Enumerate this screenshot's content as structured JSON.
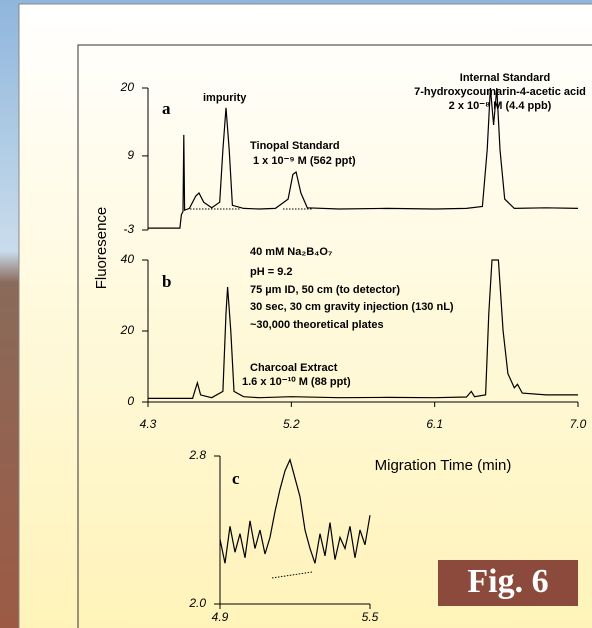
{
  "y_label": "Fluoresence",
  "figure_label": "Fig. 6",
  "chart_data": [
    {
      "type": "line",
      "panel": "a",
      "color": "#000000",
      "xlim": [
        4.3,
        7.0
      ],
      "ylim": [
        -3,
        20
      ],
      "yticks": [
        -3,
        9,
        20
      ],
      "x": [
        4.3,
        4.5,
        4.51,
        4.52,
        4.525,
        4.53,
        4.56,
        4.6,
        4.62,
        4.65,
        4.7,
        4.75,
        4.77,
        4.79,
        4.81,
        4.83,
        4.9,
        5.0,
        5.1,
        5.18,
        5.21,
        5.23,
        5.26,
        5.3,
        5.5,
        5.8,
        6.1,
        6.3,
        6.4,
        6.43,
        6.45,
        6.47,
        6.49,
        6.51,
        6.54,
        6.6,
        6.8,
        7.0
      ],
      "values": [
        -2.7,
        -2.7,
        -0.5,
        0,
        12.4,
        0.2,
        0.5,
        2.5,
        3,
        1.5,
        0.6,
        1.5,
        10,
        16.8,
        10,
        1,
        0.5,
        0.4,
        0.5,
        2,
        6.0,
        6.4,
        3,
        0.6,
        0.4,
        0.5,
        0.4,
        0.5,
        0.8,
        10,
        20,
        14,
        20,
        10,
        2,
        0.5,
        0.6,
        0.5
      ],
      "annotations": [
        "impurity",
        "Tinopal Standard",
        "1 x 10⁻⁹ M  (562 ppt)",
        "Internal Standard",
        "7-hydroxycoumarin-4-acetic acid",
        "2 x 10⁻⁸ M  (4.4 ppb)"
      ]
    },
    {
      "type": "line",
      "panel": "b",
      "color": "#000000",
      "xlim": [
        4.3,
        7.0
      ],
      "ylim": [
        0,
        40
      ],
      "yticks": [
        0,
        20,
        40
      ],
      "xticks": [
        4.3,
        5.2,
        6.1,
        {
          "value": 7,
          "label": "7.0"
        }
      ],
      "x_label": "Migration Time (min)",
      "x": [
        4.3,
        4.58,
        4.6,
        4.61,
        4.63,
        4.7,
        4.77,
        4.79,
        4.8,
        4.82,
        4.84,
        4.9,
        5.0,
        5.2,
        5.5,
        5.8,
        6.1,
        6.3,
        6.33,
        6.35,
        6.42,
        6.44,
        6.46,
        6.5,
        6.53,
        6.56,
        6.6,
        6.62,
        6.65,
        6.8,
        7.0
      ],
      "values": [
        1,
        1,
        4,
        5.4,
        2,
        1.2,
        3,
        25,
        32.4,
        20,
        3,
        1.5,
        1.2,
        1.5,
        1.2,
        1.3,
        1.2,
        1.4,
        3,
        1.5,
        2,
        25,
        40,
        40,
        20,
        8,
        4,
        5,
        2.5,
        2,
        2
      ],
      "annotations": [
        "40 mM Na₂B₄O₇",
        "pH = 9.2",
        "75 µm ID, 50 cm (to detector)",
        "30 sec, 30 cm gravity injection (130 nL)",
        "~30,000 theoretical plates",
        "Charcoal Extract",
        "1.6 x 10⁻¹⁰ M  (88 ppt)"
      ]
    },
    {
      "type": "line",
      "panel": "c",
      "color": "#000000",
      "xlim": [
        4.9,
        5.5
      ],
      "ylim": [
        2.0,
        2.8
      ],
      "yticks": [
        {
          "value": 2,
          "label": "2.0"
        },
        2.8
      ],
      "xticks": [
        4.9,
        5.5
      ],
      "x": [
        4.9,
        4.92,
        4.94,
        4.96,
        4.98,
        5.0,
        5.02,
        5.04,
        5.06,
        5.08,
        5.1,
        5.12,
        5.14,
        5.16,
        5.18,
        5.2,
        5.22,
        5.24,
        5.26,
        5.28,
        5.3,
        5.32,
        5.34,
        5.36,
        5.38,
        5.4,
        5.42,
        5.44,
        5.46,
        5.48,
        5.5
      ],
      "values": [
        2.35,
        2.22,
        2.42,
        2.28,
        2.38,
        2.25,
        2.45,
        2.3,
        2.4,
        2.27,
        2.36,
        2.5,
        2.62,
        2.72,
        2.78,
        2.68,
        2.58,
        2.4,
        2.3,
        2.22,
        2.38,
        2.26,
        2.44,
        2.24,
        2.36,
        2.3,
        2.42,
        2.25,
        2.4,
        2.32,
        2.48
      ]
    }
  ]
}
